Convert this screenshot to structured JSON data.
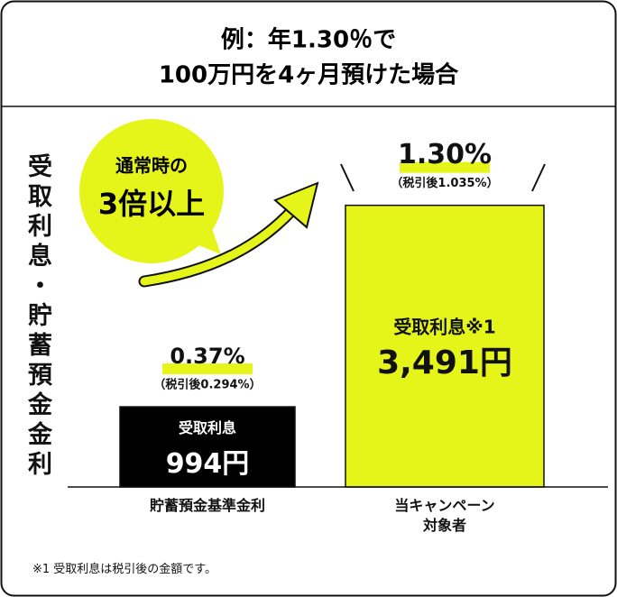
{
  "chart_data": {
    "type": "bar",
    "title": [
      "例：年1.30％で",
      "100万円を4ヶ月預けた場合"
    ],
    "y_label": "受取利息・貯蓄預金金利",
    "callout": [
      "通常時の",
      "3倍以上"
    ],
    "categories": [
      "貯蓄預金基準金利",
      "当キャンペーン\n対象者"
    ],
    "values": [
      994,
      3491
    ],
    "value_labels": [
      "994円",
      "3,491円"
    ],
    "value_names": [
      "受取利息",
      "受取利息※1"
    ],
    "rate_labels": [
      "0.37%",
      "1.30%"
    ],
    "after_tax_labels": [
      "（税引後0.294%）",
      "（税引後1.035%）"
    ],
    "colors": [
      "#000000",
      "#e6f519"
    ],
    "ylim": [
      0,
      3800
    ],
    "footnote": "※1 受取利息は税引後の金額です。"
  }
}
